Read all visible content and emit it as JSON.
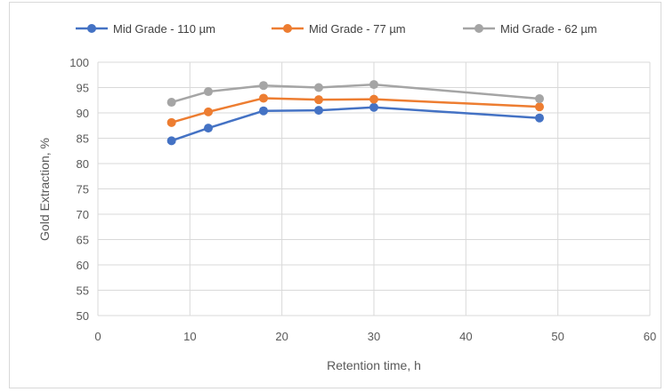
{
  "chart_data": {
    "type": "line",
    "title": "",
    "xlabel": "Retention time, h",
    "ylabel": "Gold Extraction, %",
    "xlim": [
      0,
      60
    ],
    "ylim": [
      50,
      100
    ],
    "x_ticks": [
      0,
      10,
      20,
      30,
      40,
      50,
      60
    ],
    "y_ticks": [
      50,
      55,
      60,
      65,
      70,
      75,
      80,
      85,
      90,
      95,
      100
    ],
    "grid": true,
    "legend_position": "top",
    "x": [
      8,
      12,
      18,
      24,
      30,
      48
    ],
    "series": [
      {
        "name": "Mid Grade - 110 µm",
        "color": "#4472c4",
        "values": [
          84.5,
          87.0,
          90.4,
          90.5,
          91.1,
          89.0
        ]
      },
      {
        "name": "Mid Grade - 77 µm",
        "color": "#ed7d31",
        "values": [
          88.1,
          90.2,
          92.9,
          92.6,
          92.7,
          91.2
        ]
      },
      {
        "name": "Mid Grade - 62 µm",
        "color": "#a5a5a5",
        "values": [
          92.1,
          94.2,
          95.4,
          95.0,
          95.6,
          92.8
        ]
      }
    ]
  }
}
